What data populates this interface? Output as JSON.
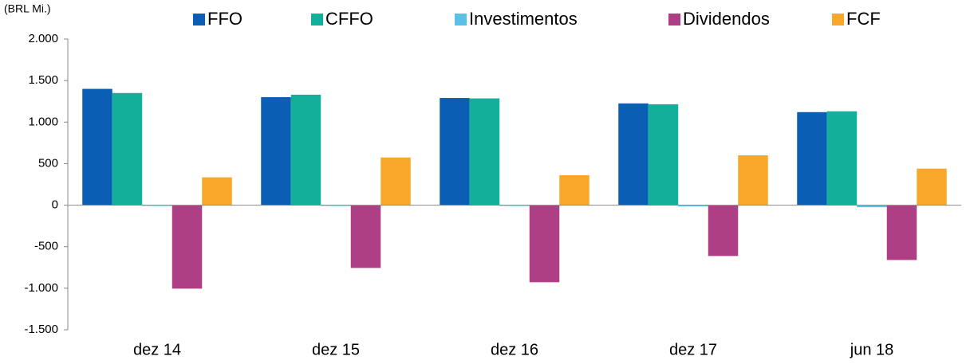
{
  "chart_data": {
    "type": "bar",
    "y_label": "(BRL Mi.)",
    "categories": [
      "dez 14",
      "dez 15",
      "dez 16",
      "dez 17",
      "jun 18"
    ],
    "series": [
      {
        "name": "FFO",
        "color": "#0a5fb4",
        "values": [
          1400,
          1300,
          1290,
          1225,
          1120
        ]
      },
      {
        "name": "CFFO",
        "color": "#12b09a",
        "values": [
          1350,
          1330,
          1285,
          1215,
          1130
        ]
      },
      {
        "name": "Investimentos",
        "color": "#5bc0e6",
        "values": [
          -5,
          -5,
          -2,
          -15,
          -25
        ]
      },
      {
        "name": "Dividendos",
        "color": "#ae3f84",
        "values": [
          -1005,
          -756,
          -928,
          -612,
          -660
        ]
      },
      {
        "name": "FCF",
        "color": "#f8a72a",
        "values": [
          335,
          574,
          360,
          600,
          440
        ]
      }
    ],
    "ylim": [
      -1500,
      2000
    ],
    "yticks": [
      {
        "value": -1500,
        "label": "-1.500"
      },
      {
        "value": -1000,
        "label": "-1.000"
      },
      -500,
      0,
      500,
      {
        "value": 1000,
        "label": "1.000"
      },
      {
        "value": 1500,
        "label": "1.500"
      },
      {
        "value": 2000,
        "label": "2.000"
      }
    ],
    "grid": false,
    "legend": "top"
  }
}
